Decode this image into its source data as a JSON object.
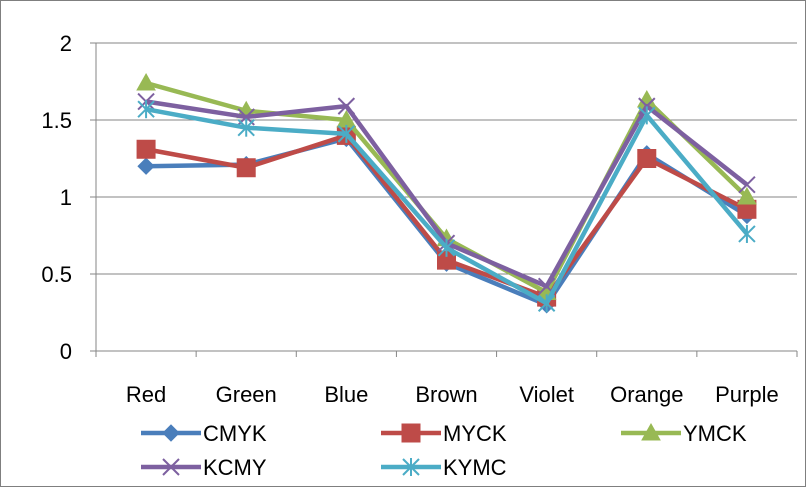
{
  "chart_data": {
    "type": "line",
    "categories": [
      "Red",
      "Green",
      "Blue",
      "Brown",
      "Violet",
      "Orange",
      "Purple"
    ],
    "ylim": [
      0,
      2
    ],
    "yticks": [
      "0",
      "0.5",
      "1",
      "1.5",
      "2"
    ],
    "grid": true,
    "legend_position": "bottom",
    "series": [
      {
        "name": "CMYK",
        "color": "#4a7ebb",
        "marker": "diamond",
        "values": [
          1.2,
          1.21,
          1.38,
          0.57,
          0.3,
          1.28,
          0.88
        ]
      },
      {
        "name": "MYCK",
        "color": "#be4b48",
        "marker": "square",
        "values": [
          1.31,
          1.19,
          1.4,
          0.59,
          0.35,
          1.25,
          0.92
        ]
      },
      {
        "name": "YMCK",
        "color": "#98b954",
        "marker": "triangle",
        "values": [
          1.74,
          1.56,
          1.5,
          0.73,
          0.38,
          1.63,
          1.0
        ]
      },
      {
        "name": "KCMY",
        "color": "#7d60a0",
        "marker": "x",
        "values": [
          1.62,
          1.52,
          1.59,
          0.7,
          0.42,
          1.59,
          1.08
        ]
      },
      {
        "name": "KYMC",
        "color": "#4bacc6",
        "marker": "asterisk",
        "values": [
          1.57,
          1.45,
          1.41,
          0.67,
          0.31,
          1.53,
          0.76
        ]
      }
    ]
  }
}
